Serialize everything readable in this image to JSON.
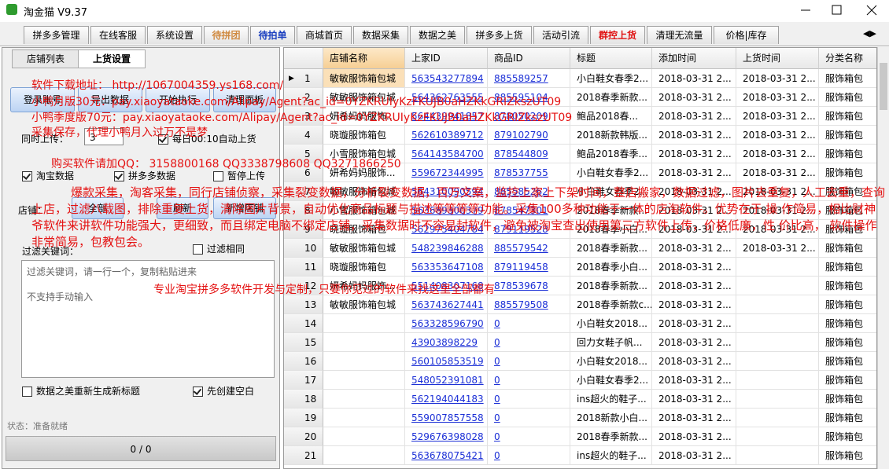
{
  "window": {
    "title": "淘金猫 V9.37"
  },
  "tabs": [
    {
      "label": "拼多多管理",
      "color": "#000000"
    },
    {
      "label": "在线客服",
      "color": "#000000"
    },
    {
      "label": "系统设置",
      "color": "#000000"
    },
    {
      "label": "待拼团",
      "color": "#d08a40"
    },
    {
      "label": "待拍单",
      "color": "#1a3fc0"
    },
    {
      "label": "商城首页",
      "color": "#000000"
    },
    {
      "label": "数据采集",
      "color": "#000000"
    },
    {
      "label": "数据之美",
      "color": "#000000"
    },
    {
      "label": "拼多多上货",
      "color": "#000000"
    },
    {
      "label": "活动引流",
      "color": "#000000"
    },
    {
      "label": "群控上货",
      "color": "#e01010"
    },
    {
      "label": "清理无流量",
      "color": "#000000"
    },
    {
      "label": "价格|库存",
      "color": "#000000"
    }
  ],
  "left_panel": {
    "tabs": [
      "店铺列表",
      "上货设置"
    ],
    "buttons": [
      "登录账号",
      "导出数据",
      "开始执行",
      "清理面板"
    ],
    "concurrent_label": "同时上传：",
    "concurrent_value": "3",
    "checkboxes_row1": [
      {
        "label": "每日00:10自动上货",
        "checked": true
      }
    ],
    "checkboxes_row2": [
      {
        "label": "淘宝数据",
        "checked": true
      },
      {
        "label": "拼多多数据",
        "checked": true
      },
      {
        "label": "暂停上传",
        "checked": false
      }
    ],
    "shop_label": "店铺：",
    "shop_buttons": [
      "全部",
      "刷新",
      "新增店铺"
    ],
    "filter_label": "过滤关键词：",
    "filter_same": {
      "label": "过滤相同",
      "checked": false
    },
    "filter_hint": [
      "过滤关键词，请一行一个，复制粘贴进来",
      "不支持手动输入"
    ],
    "bottom_checkboxes": [
      {
        "label": "数据之美重新生成新标题",
        "checked": false
      },
      {
        "label": "先创建空白",
        "checked": true
      }
    ],
    "status": "状态：准备就绪",
    "progress": "0 / 0"
  },
  "table": {
    "columns": [
      "店铺名称",
      "上家ID",
      "商品ID",
      "标题",
      "添加时间",
      "上货时间",
      "分类名称"
    ],
    "link_columns": [
      1,
      2
    ],
    "selected_row": 0,
    "rows": [
      [
        1,
        "敏敏服饰箱包城",
        "563543277894",
        "885589257",
        "小白鞋女春季2...",
        "2018-03-31 2...",
        "2018-03-31 2...",
        "服饰箱包"
      ],
      [
        2,
        "敏敏服饰箱包城",
        "564362763555",
        "885595104",
        "2018春季新款...",
        "2018-03-31 2...",
        "2018-03-31 2...",
        "服饰箱包"
      ],
      [
        3,
        "妍希妈妈服饰...",
        "564439941857",
        "878050209",
        "鲍品2018春...",
        "2018-03-31 2...",
        "2018-03-31 2...",
        "服饰箱包"
      ],
      [
        4,
        "晓璇服饰箱包",
        "562610389712",
        "879102790",
        "2018新款韩版...",
        "2018-03-31 2...",
        "2018-03-31 2...",
        "服饰箱包"
      ],
      [
        5,
        "小雪服饰箱包城",
        "564143584700",
        "878544809",
        "鲍品2018春季...",
        "2018-03-31 2...",
        "2018-03-31 2...",
        "服饰箱包"
      ],
      [
        6,
        "妍希妈妈服饰...",
        "559672344995",
        "878537755",
        "小白鞋女春季2...",
        "2018-03-31 2...",
        "2018-03-31 2...",
        "服饰箱包"
      ],
      [
        7,
        "敏敏服饰箱包城",
        "564310090594",
        "885585262",
        "小白鞋女春季2...",
        "2018-03-31 2...",
        "2018-03-31 2...",
        "服饰箱包"
      ],
      [
        8,
        "小雪服饰箱包城",
        "563689300379",
        "878547301",
        "2018春季新款...",
        "2018-03-31 2...",
        "2018-03-31 2...",
        "服饰箱包"
      ],
      [
        9,
        "晓璇服饰箱包",
        "562975404784",
        "879119528",
        "2018春季小白...",
        "2018-03-31 2...",
        "2018-03-31 2...",
        "服饰箱包"
      ],
      [
        10,
        "敏敏服饰箱包城",
        "548239846288",
        "885579542",
        "2018春季新款...",
        "2018-03-31 2...",
        "2018-03-31 2...",
        "服饰箱包"
      ],
      [
        11,
        "晓璇服饰箱包",
        "563353647108",
        "879119458",
        "2018春季小白...",
        "2018-03-31 2...",
        null,
        "服饰箱包"
      ],
      [
        12,
        "妍希妈妈服饰...",
        "551408307168",
        "878539678",
        "2018春季新款...",
        "2018-03-31 2...",
        null,
        "服饰箱包"
      ],
      [
        13,
        "敏敏服饰箱包城",
        "563743627441",
        "885579508",
        "2018春季新款c...",
        "2018-03-31 2...",
        null,
        "服饰箱包"
      ],
      [
        14,
        null,
        "563328596790",
        "0",
        "小白鞋女2018...",
        "2018-03-31 2...",
        null,
        "服饰箱包"
      ],
      [
        15,
        null,
        "43903898229",
        "0",
        "回力女鞋子帆...",
        "2018-03-31 2...",
        null,
        "服饰箱包"
      ],
      [
        16,
        null,
        "560105853519",
        "0",
        "小白鞋女2018...",
        "2018-03-31 2...",
        null,
        "服饰箱包"
      ],
      [
        17,
        null,
        "548052391081",
        "0",
        "小白鞋女春季2...",
        "2018-03-31 2...",
        null,
        "服饰箱包"
      ],
      [
        18,
        null,
        "562194044183",
        "0",
        "ins超火的鞋子...",
        "2018-03-31 2...",
        null,
        "服饰箱包"
      ],
      [
        19,
        null,
        "559007857558",
        "0",
        "2018新款小白...",
        "2018-03-31 2...",
        null,
        "服饰箱包"
      ],
      [
        20,
        null,
        "529676398028",
        "0",
        "2018春季新款...",
        "2018-03-31 2...",
        null,
        "服饰箱包"
      ],
      [
        21,
        null,
        "563678075421",
        "0",
        "ins超火的鞋子...",
        "2018-03-31 2...",
        null,
        "服饰箱包"
      ]
    ]
  },
  "overlay": {
    "download": "软件下载地址： http://1067004359.ys168.com/",
    "monthly": "小鸭月版30元：pay.xiaoyataoke.com/Alipay/Agent?ac_id=0YZKRUIyKzFKUJB0aHZKkGRIZkszUT09",
    "quarterly": "小鸭季度版70元：pay.xiaoyataoke.com/Alipay/Agent?ac_id=0YZKRUIyKzFKUJB0aHZKkGRIZkszUT09",
    "slogan": "采集保存，代理小鸭月入过万不是梦",
    "qq": "购买软件请加QQ：  3158800168      QQ3338798608    QQ3271866250",
    "features": "爆款采集，淘客采集，同行店铺侦察，采集裂变数据，分析裂变数据，百万文案，监控上家上下架时间，整店搬家，数据过滤，图片去重复，人工去重，查询上店，过滤八载图，排除重复上货，清除图片背景，自动优化商品标题与描述等等等等功能。采集100多种功能于一体的店淘软件。优势在于 操 作简易，相比财神爷软件来讲软件功能强大，更细致，而且绑定电脑不绑定店铺，采集数据时不容易封软件，避免被淘宝查出使用第三方软件上传，价格低廉，性 价比高， 软件操作非常简易，包教包会。",
    "custom": "专业淘宝拼多多软件开发与定制，只要你见过的软件来找这里全部都有"
  }
}
